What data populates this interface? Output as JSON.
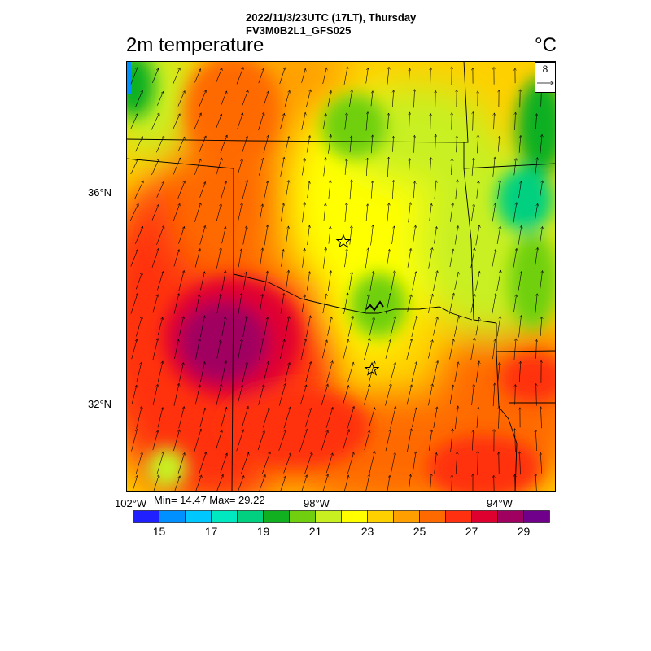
{
  "header": {
    "line1": "2022/11/3/23UTC (17LT), Thursday",
    "line2": "FV3M0B2L1_GFS025"
  },
  "variable_title": "2m temperature",
  "unit": "°C",
  "map": {
    "lat_labels": [
      "36°N",
      "32°N"
    ],
    "lon_labels": [
      "102°W",
      "98°W",
      "94°W"
    ],
    "stations": [
      "star-marker-north",
      "star-marker-south"
    ]
  },
  "vector_reference": {
    "value": "8"
  },
  "stats": {
    "text": "Min= 14.47 Max= 29.22"
  },
  "colorbar": {
    "labels": [
      "15",
      "17",
      "19",
      "21",
      "23",
      "25",
      "27",
      "29"
    ],
    "colors": [
      "#2020ff",
      "#0090ff",
      "#00c8ff",
      "#00e8c0",
      "#00d080",
      "#10b020",
      "#70d010",
      "#c8f020",
      "#ffff00",
      "#ffd000",
      "#ffa000",
      "#ff6a00",
      "#ff3010",
      "#e00030",
      "#a00060",
      "#70008c"
    ]
  }
}
